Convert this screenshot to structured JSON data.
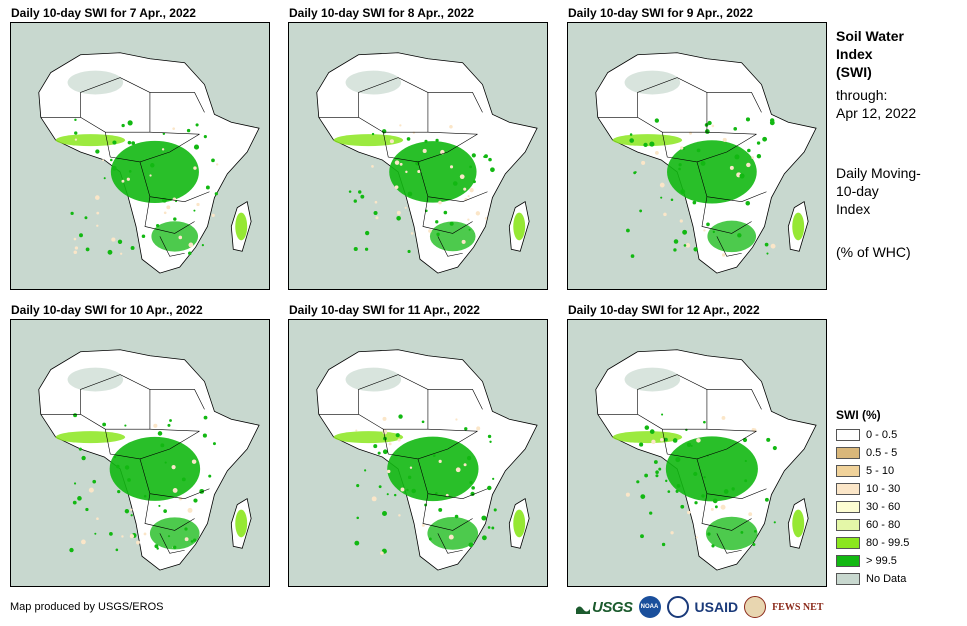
{
  "panels": [
    {
      "title": "Daily 10-day SWI for 7 Apr., 2022",
      "wetness_level": 0.55
    },
    {
      "title": "Daily 10-day SWI for 8 Apr., 2022",
      "wetness_level": 0.5
    },
    {
      "title": "Daily 10-day SWI for 9 Apr., 2022",
      "wetness_level": 0.65
    },
    {
      "title": "Daily 10-day SWI for 10 Apr., 2022",
      "wetness_level": 0.7
    },
    {
      "title": "Daily 10-day SWI for 11 Apr., 2022",
      "wetness_level": 0.75
    },
    {
      "title": "Daily 10-day SWI for 12 Apr., 2022",
      "wetness_level": 0.8
    }
  ],
  "side": {
    "title_line1": "Soil Water",
    "title_line2": "Index",
    "title_line3": "(SWI)",
    "through_label": "through:",
    "through_date": "Apr 12, 2022",
    "desc_line1": "Daily Moving-",
    "desc_line2": "10-day",
    "desc_line3": "Index",
    "unit": "(% of WHC)"
  },
  "legend": {
    "title": "SWI (%)",
    "items": [
      {
        "label": "0 - 0.5",
        "color": "#ffffff"
      },
      {
        "label": "0.5 - 5",
        "color": "#d9b77a"
      },
      {
        "label": "5 - 10",
        "color": "#f0d29a"
      },
      {
        "label": "10 - 30",
        "color": "#fbe6c8"
      },
      {
        "label": "30 - 60",
        "color": "#fdfdd2"
      },
      {
        "label": "60 - 80",
        "color": "#e4f7a8"
      },
      {
        "label": "80 - 99.5",
        "color": "#8be61e"
      },
      {
        "label": "> 99.5",
        "color": "#12b812"
      },
      {
        "label": "No Data",
        "color": "#c8d8cf"
      }
    ]
  },
  "credit": "Map produced by USGS/EROS",
  "logos": {
    "usgs": "USGS",
    "noaa": "NOAA",
    "usaid": "USAID",
    "fews": "FEWS NET"
  },
  "colors": {
    "ocean": "#c8d8cf",
    "land": "#ffffff",
    "wet": "#12b812",
    "moist": "#8be61e",
    "dry": "#fbe6c8",
    "nodata": "#c8d8cf",
    "border": "#000000"
  }
}
